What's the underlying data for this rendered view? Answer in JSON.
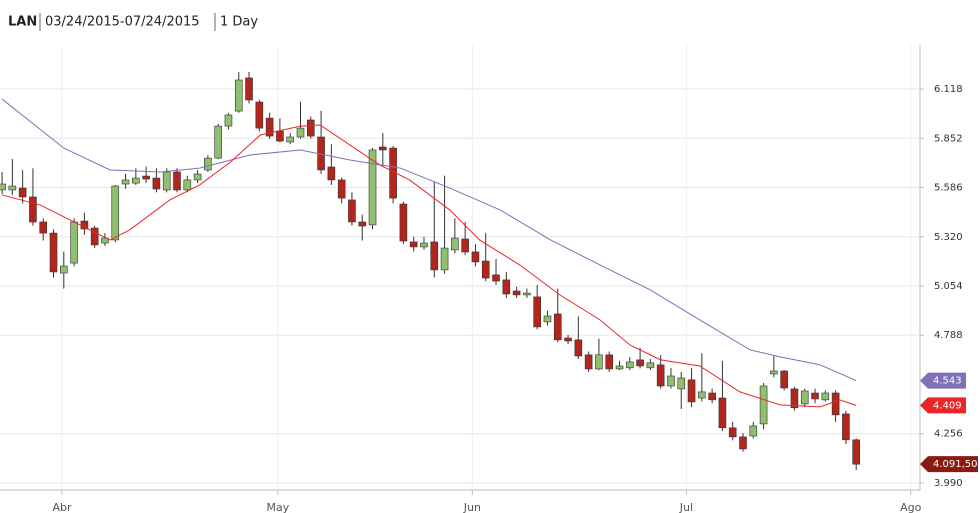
{
  "chart_data": {
    "type": "candlestick",
    "symbol": "LAN",
    "date_range": "03/24/2015-07/24/2015",
    "interval": "1 Day",
    "xlim": [
      -0.2,
      89.2
    ],
    "xticks": [
      {
        "value": 5.83,
        "label": "Abr"
      },
      {
        "value": 26.8,
        "label": "May"
      },
      {
        "value": 45.7,
        "label": "Jun"
      },
      {
        "value": 66.5,
        "label": "Jul"
      },
      {
        "value": 88.3,
        "label": "Ago"
      }
    ],
    "ylim": [
      3.952,
      6.356
    ],
    "yticks": [
      {
        "value": 3.99,
        "label": "3.990"
      },
      4.256,
      4.788,
      5.054,
      {
        "value": 5.32,
        "label": "5.320"
      },
      5.586,
      5.852,
      6.118
    ],
    "grid": true,
    "up_color": "#8fbf6f",
    "down_color": "#b3261e",
    "close_tag_color": "#8b1a10",
    "open": [
      5.573,
      5.573,
      5.583,
      5.535,
      5.4,
      5.34,
      5.124,
      5.178,
      5.405,
      5.367,
      5.286,
      5.303,
      5.605,
      5.61,
      5.648,
      5.637,
      5.573,
      5.67,
      5.573,
      5.627,
      5.681,
      5.745,
      5.918,
      5.999,
      6.178,
      6.048,
      5.961,
      5.891,
      5.832,
      5.859,
      5.951,
      5.859,
      5.697,
      5.627,
      5.519,
      5.4,
      5.384,
      5.805,
      5.799,
      5.497,
      5.292,
      5.265,
      5.292,
      5.141,
      5.249,
      5.308,
      5.238,
      5.189,
      5.114,
      5.087,
      5.027,
      5.006,
      4.995,
      4.86,
      4.903,
      4.773,
      4.763,
      4.682,
      4.606,
      4.682,
      4.606,
      4.612,
      4.655,
      4.612,
      4.628,
      4.514,
      4.498,
      4.547,
      4.449,
      4.476,
      4.449,
      4.288,
      4.239,
      4.244,
      4.309,
      4.579,
      4.595,
      4.498,
      4.417,
      4.476,
      4.439,
      4.476,
      4.363,
      4.223
    ],
    "high": [
      5.67,
      5.74,
      5.68,
      5.69,
      5.42,
      5.36,
      5.24,
      5.42,
      5.45,
      5.38,
      5.34,
      5.6,
      5.66,
      5.69,
      5.7,
      5.69,
      5.69,
      5.69,
      5.65,
      5.68,
      5.76,
      5.93,
      5.99,
      6.21,
      6.21,
      6.06,
      5.99,
      5.96,
      5.88,
      6.05,
      5.97,
      6.0,
      5.82,
      5.64,
      5.56,
      5.44,
      5.8,
      5.88,
      5.81,
      5.51,
      5.32,
      5.32,
      5.62,
      5.65,
      5.42,
      5.4,
      5.28,
      5.34,
      5.2,
      5.13,
      5.05,
      5.04,
      5.06,
      4.92,
      5.04,
      4.79,
      4.89,
      4.7,
      4.77,
      4.7,
      4.65,
      4.67,
      4.72,
      4.66,
      4.68,
      4.61,
      4.59,
      4.61,
      4.69,
      4.5,
      4.65,
      4.32,
      4.26,
      4.32,
      4.53,
      4.68,
      4.6,
      4.51,
      4.5,
      4.5,
      4.49,
      4.49,
      4.38,
      4.23
    ],
    "low": [
      5.55,
      5.546,
      5.5,
      5.38,
      5.3,
      5.1,
      5.04,
      5.16,
      5.33,
      5.26,
      5.27,
      5.29,
      5.58,
      5.6,
      5.61,
      5.56,
      5.56,
      5.56,
      5.56,
      5.61,
      5.67,
      5.74,
      5.9,
      5.99,
      6.04,
      5.89,
      5.85,
      5.83,
      5.82,
      5.85,
      5.85,
      5.66,
      5.6,
      5.5,
      5.38,
      5.3,
      5.36,
      5.7,
      5.5,
      5.28,
      5.24,
      5.25,
      5.1,
      5.12,
      5.23,
      5.22,
      5.16,
      5.08,
      5.06,
      4.99,
      4.99,
      4.99,
      4.82,
      4.84,
      4.75,
      4.74,
      4.66,
      4.59,
      4.6,
      4.59,
      4.6,
      4.6,
      4.61,
      4.6,
      4.5,
      4.5,
      4.39,
      4.4,
      4.43,
      4.42,
      4.27,
      4.22,
      4.16,
      4.23,
      4.28,
      4.56,
      4.49,
      4.38,
      4.4,
      4.42,
      4.43,
      4.32,
      4.2,
      4.06
    ],
    "close": [
      5.605,
      5.594,
      5.535,
      5.4,
      5.34,
      5.13,
      5.162,
      5.4,
      5.362,
      5.276,
      5.313,
      5.594,
      5.627,
      5.637,
      5.632,
      5.578,
      5.67,
      5.573,
      5.627,
      5.659,
      5.745,
      5.918,
      5.978,
      6.167,
      6.059,
      5.907,
      5.864,
      5.837,
      5.859,
      5.907,
      5.864,
      5.681,
      5.627,
      5.529,
      5.4,
      5.378,
      5.789,
      5.789,
      5.529,
      5.297,
      5.265,
      5.286,
      5.141,
      5.259,
      5.313,
      5.238,
      5.184,
      5.097,
      5.081,
      5.011,
      5.006,
      5.016,
      4.833,
      4.892,
      4.763,
      4.757,
      4.676,
      4.606,
      4.682,
      4.606,
      4.622,
      4.644,
      4.622,
      4.639,
      4.514,
      4.568,
      4.557,
      4.428,
      4.482,
      4.439,
      4.288,
      4.239,
      4.174,
      4.298,
      4.514,
      4.595,
      4.503,
      4.396,
      4.487,
      4.444,
      4.476,
      4.358,
      4.223,
      4.0915
    ],
    "close_label": "4.091,50",
    "series": [
      {
        "color": "#8070b8",
        "x": [
          0,
          6,
          10.5,
          15.4,
          19.2,
          24.1,
          29,
          33.8,
          38.7,
          43.5,
          48.4,
          53.3,
          58.1,
          63,
          67.8,
          72.7,
          75.6,
          79.5,
          83
        ],
        "values": [
          6.064,
          5.799,
          5.681,
          5.67,
          5.691,
          5.762,
          5.789,
          5.735,
          5.691,
          5.583,
          5.465,
          5.303,
          5.168,
          5.033,
          4.871,
          4.709,
          4.671,
          4.628,
          4.543
        ]
      },
      {
        "color": "#e8262a",
        "x": [
          0,
          3.7,
          6.6,
          10.5,
          12.4,
          16.3,
          19.2,
          22.2,
          25.1,
          29,
          30.9,
          33.8,
          36.7,
          39.6,
          43.5,
          46.4,
          50.3,
          54.2,
          58.1,
          61,
          64,
          67.8,
          71.7,
          75.6,
          79.5,
          81.4,
          83
        ],
        "values": [
          5.546,
          5.492,
          5.411,
          5.303,
          5.357,
          5.519,
          5.6,
          5.724,
          5.87,
          5.918,
          5.924,
          5.816,
          5.708,
          5.627,
          5.465,
          5.303,
          5.168,
          5.006,
          4.871,
          4.736,
          4.655,
          4.622,
          4.482,
          4.412,
          4.401,
          4.439,
          4.409
        ]
      }
    ]
  }
}
